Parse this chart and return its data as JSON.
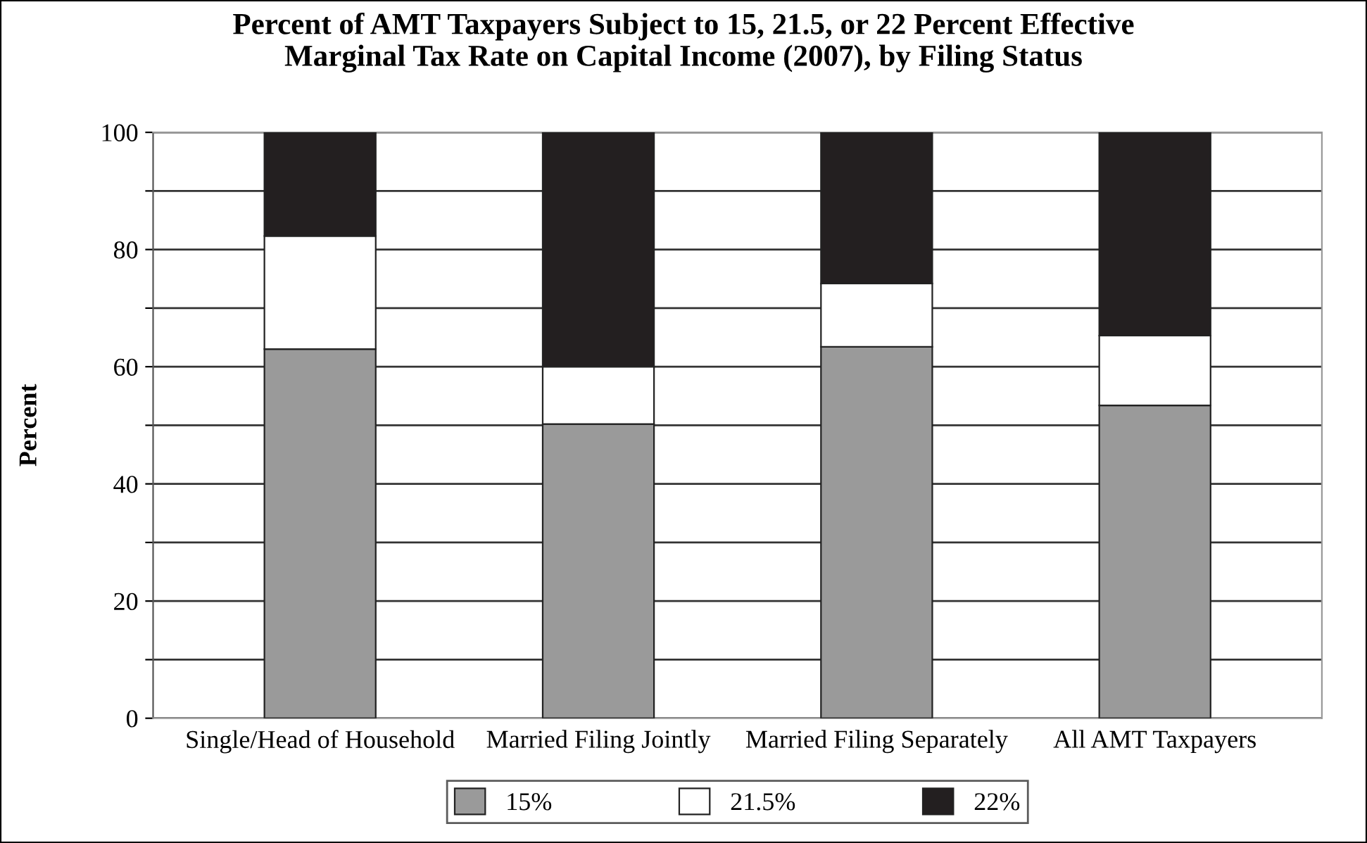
{
  "chart_data": {
    "type": "bar",
    "stacked": true,
    "title": "Percent of AMT Taxpayers Subject to 15, 21.5, or 22 Percent Effective\nMarginal Tax Rate on Capital Income (2007), by Filing Status",
    "ylabel": "Percent",
    "categories": [
      "Single/Head of Household",
      "Married Filing Jointly",
      "Married Filing Separately",
      "All AMT Taxpayers"
    ],
    "series": [
      {
        "name": "15%",
        "color": "#9a9a9a",
        "values": [
          63.0,
          50.2,
          63.4,
          53.4
        ]
      },
      {
        "name": "21.5%",
        "color": "#ffffff",
        "values": [
          19.3,
          9.8,
          10.8,
          11.9
        ]
      },
      {
        "name": "22%",
        "color": "#231f20",
        "values": [
          17.7,
          40.0,
          25.8,
          34.7
        ]
      }
    ],
    "ylim": [
      0,
      100
    ],
    "yticks": [
      0,
      {
        "value": 10,
        "label": null
      },
      20,
      {
        "value": 30,
        "label": null
      },
      40,
      {
        "value": 50,
        "label": null
      },
      60,
      {
        "value": 70,
        "label": null
      },
      80,
      {
        "value": 90,
        "label": null
      },
      100
    ],
    "grid": "y",
    "legend": "bottom"
  }
}
